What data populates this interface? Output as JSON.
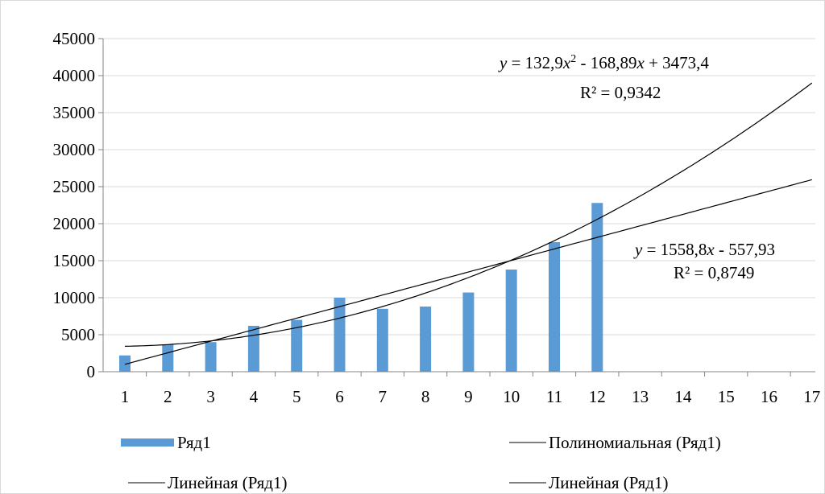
{
  "chart_data": {
    "type": "bar",
    "categories": [
      "1",
      "2",
      "3",
      "4",
      "5",
      "6",
      "7",
      "8",
      "9",
      "10",
      "11",
      "12",
      "13",
      "14",
      "15",
      "16",
      "17"
    ],
    "series": [
      {
        "name": "Ряд1",
        "values": [
          2200,
          3700,
          4000,
          6200,
          7000,
          10000,
          8500,
          8800,
          10700,
          13800,
          17500,
          22800,
          null,
          null,
          null,
          null,
          null
        ],
        "color": "#5b9bd5"
      }
    ],
    "trendlines": [
      {
        "name": "Полиномиальная (Ряд1)",
        "kind": "polynomial",
        "coefficients": [
          132.9,
          -168.89,
          3473.4
        ],
        "equation_prefix": "y",
        "equation_mid1": " = 132,9",
        "equation_var1": "x",
        "equation_sup": "2",
        "equation_mid2": " - 168,89",
        "equation_var2": "x",
        "equation_end": " + 3473,4",
        "r2": "R² = 0,9342"
      },
      {
        "name": "Линейная (Ряд1)",
        "kind": "linear",
        "coefficients": [
          1558.8,
          -557.93
        ],
        "equation_prefix": "y",
        "equation_mid1": " = 1558,8",
        "equation_var1": "x",
        "equation_end": " - 557,93",
        "r2": "R² = 0,8749"
      }
    ],
    "yticks": [
      "0",
      "5000",
      "10000",
      "15000",
      "20000",
      "25000",
      "30000",
      "35000",
      "40000",
      "45000"
    ],
    "ylim": [
      0,
      45000
    ],
    "xlim": [
      1,
      17
    ],
    "grid": true,
    "legend_position": "bottom",
    "legend": [
      {
        "label": "Ряд1",
        "symbol": "bar"
      },
      {
        "label": "Полиномиальная (Ряд1)",
        "symbol": "line"
      },
      {
        "label": "Линейная (Ряд1)",
        "symbol": "line"
      },
      {
        "label": "Линейная (Ряд1)",
        "symbol": "line"
      }
    ],
    "title": "",
    "xlabel": "",
    "ylabel": "",
    "colors": {
      "bar": "#5b9bd5",
      "grid": "#d9d9d9",
      "axis": "#868686",
      "line": "#000000",
      "border": "#d9d9d9"
    }
  }
}
